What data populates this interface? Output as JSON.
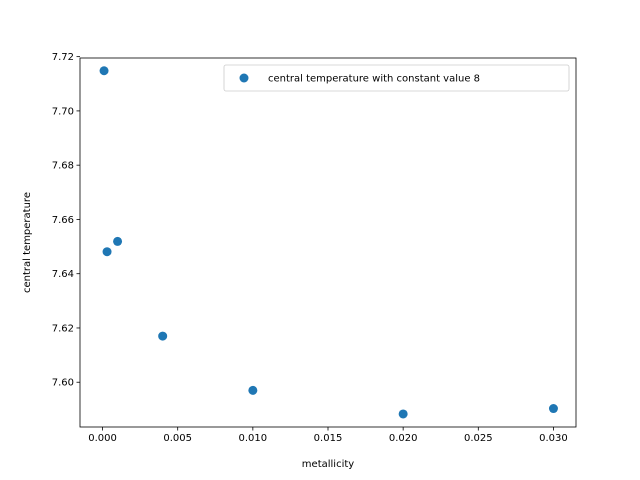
{
  "chart_data": {
    "type": "scatter",
    "title": "",
    "xlabel": "metallicity",
    "ylabel": "central temperature",
    "xlim": [
      -0.0015,
      0.0315
    ],
    "ylim": [
      7.5835,
      7.7195
    ],
    "xticks": [
      0.0,
      0.005,
      0.01,
      0.015,
      0.02,
      0.025,
      0.03
    ],
    "xtick_labels": [
      "0.000",
      "0.005",
      "0.010",
      "0.015",
      "0.020",
      "0.025",
      "0.030"
    ],
    "yticks": [
      7.6,
      7.62,
      7.64,
      7.66,
      7.68,
      7.7,
      7.72
    ],
    "ytick_labels": [
      "7.60",
      "7.62",
      "7.64",
      "7.66",
      "7.68",
      "7.70",
      "7.72"
    ],
    "grid": false,
    "legend_position": "top-right",
    "series": [
      {
        "name": "central temperature with constant value 8",
        "color": "#1f77b4",
        "x": [
          0.0001,
          0.0003,
          0.001,
          0.004,
          0.01,
          0.02,
          0.03
        ],
        "y": [
          7.7148,
          7.6481,
          7.6519,
          7.617,
          7.597,
          7.5883,
          7.5903
        ]
      }
    ]
  }
}
